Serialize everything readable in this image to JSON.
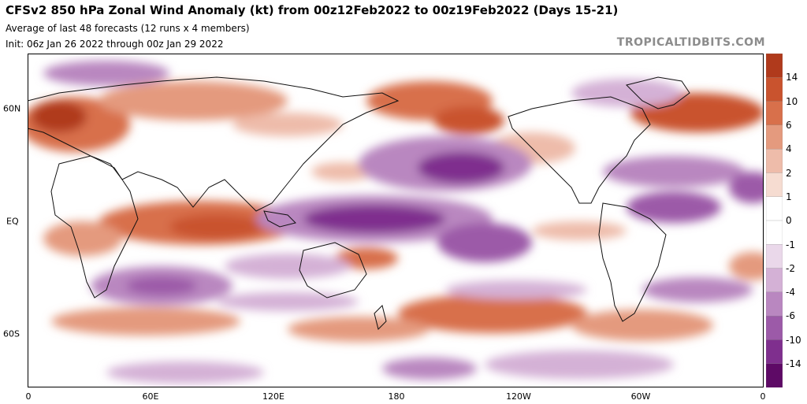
{
  "header": {
    "title": "CFSv2 850 hPa Zonal Wind Anomaly (kt) from 00z12Feb2022 to 00z19Feb2022 (Days 15-21)",
    "subtitle": "Average of last 48 forecasts (12 runs x 4 members)",
    "init": "Init: 06z Jan 26 2022 through 00z Jan 29 2022",
    "brand": "TROPICALTIDBITS.COM"
  },
  "map": {
    "lat_labels": [
      "60N",
      "EQ",
      "60S"
    ],
    "lon_labels": [
      "0",
      "60E",
      "120E",
      "180",
      "120W",
      "60W",
      "0"
    ]
  },
  "colorbar": {
    "labels": [
      "14",
      "10",
      "6",
      "4",
      "2",
      "1",
      "0",
      "-1",
      "-2",
      "-4",
      "-6",
      "-10",
      "-14"
    ],
    "colors": [
      "#b03a1c",
      "#c9532e",
      "#d8704b",
      "#e49a7e",
      "#eebcaa",
      "#f6dcd1",
      "#ffffff",
      "#ffffff",
      "#ead8ea",
      "#d4b1d6",
      "#b987c0",
      "#9c5aa8",
      "#7f2f8e",
      "#5e0a66"
    ]
  }
}
